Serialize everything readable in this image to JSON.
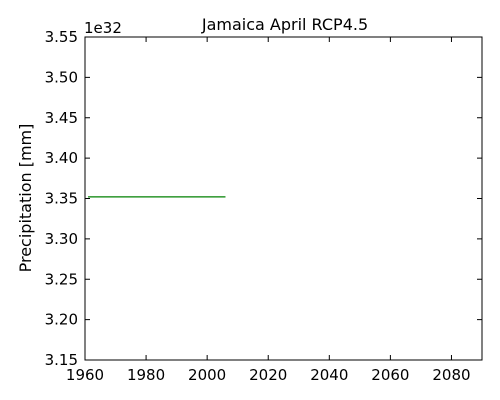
{
  "chart_data": {
    "type": "line",
    "title": "Jamaica  April RCP4.5",
    "xlabel": "",
    "ylabel": "Precipitation [mm]",
    "y_offset_label": "1e32",
    "xlim": [
      1960,
      2090
    ],
    "ylim": [
      3.15,
      3.55
    ],
    "x_ticks": [
      1960,
      1980,
      2000,
      2020,
      2040,
      2060,
      2080
    ],
    "y_ticks": [
      3.15,
      3.2,
      3.25,
      3.3,
      3.35,
      3.4,
      3.45,
      3.5,
      3.55
    ],
    "grid": false,
    "series": [
      {
        "color": "#008000",
        "x": [
          1961,
          2006
        ],
        "y": [
          3.352,
          3.352
        ]
      }
    ]
  }
}
